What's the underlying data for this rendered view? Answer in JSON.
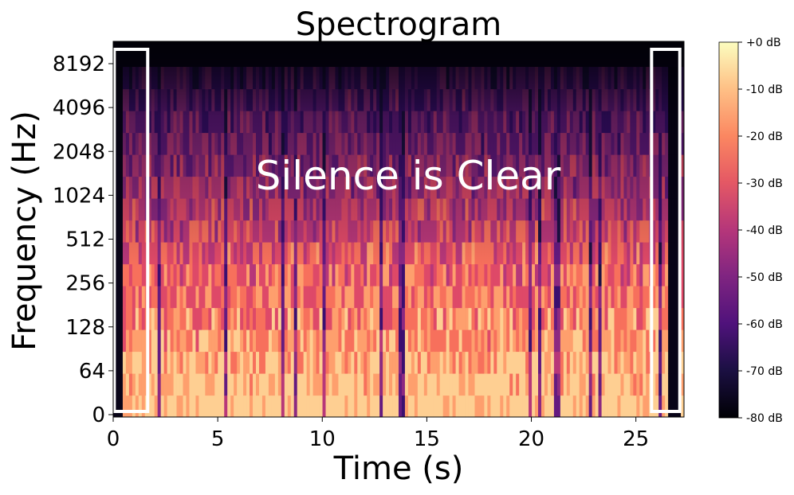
{
  "chart_data": {
    "type": "heatmap",
    "title": "Spectrogram",
    "xlabel": "Time (s)",
    "ylabel": "Frequency (Hz)",
    "xlim": [
      0,
      27.3
    ],
    "x_ticks": [
      0,
      5,
      10,
      15,
      20,
      25
    ],
    "y_scale": "log2 (symlog)",
    "y_ticks": [
      "0",
      "64",
      "128",
      "256",
      "512",
      "1024",
      "2048",
      "4096",
      "8192"
    ],
    "colormap": "magma",
    "colorbar": {
      "range_db": [
        -80,
        0
      ],
      "ticks": [
        "+0 dB",
        "-10 dB",
        "-20 dB",
        "-30 dB",
        "-40 dB",
        "-50 dB",
        "-60 dB",
        "-70 dB",
        "-80 dB"
      ]
    },
    "annotation": "Silence is Clear",
    "highlighted_regions_s": [
      [
        0.05,
        1.65
      ],
      [
        25.75,
        27.1
      ]
    ],
    "grid": false
  }
}
